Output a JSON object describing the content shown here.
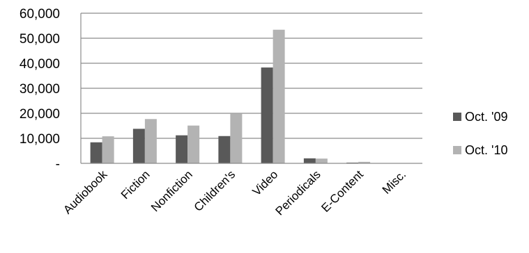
{
  "chart_data": {
    "type": "bar",
    "categories": [
      "Audiobook",
      "Fiction",
      "Nonfiction",
      "Children's",
      "Video",
      "Periodicals",
      "E-Content",
      "Misc."
    ],
    "series": [
      {
        "name": "Oct. '09",
        "color": "#595959",
        "values": [
          8400,
          13800,
          11200,
          10900,
          38300,
          2000,
          300,
          0
        ]
      },
      {
        "name": "Oct. '10",
        "color": "#b3b3b3",
        "values": [
          10800,
          17700,
          15100,
          19800,
          53400,
          1900,
          600,
          0
        ]
      }
    ],
    "y_ticks": [
      "-",
      "10,000",
      "20,000",
      "30,000",
      "40,000",
      "50,000",
      "60,000"
    ],
    "ylim": [
      0,
      60000
    ],
    "grid": true,
    "legend_position": "right"
  }
}
